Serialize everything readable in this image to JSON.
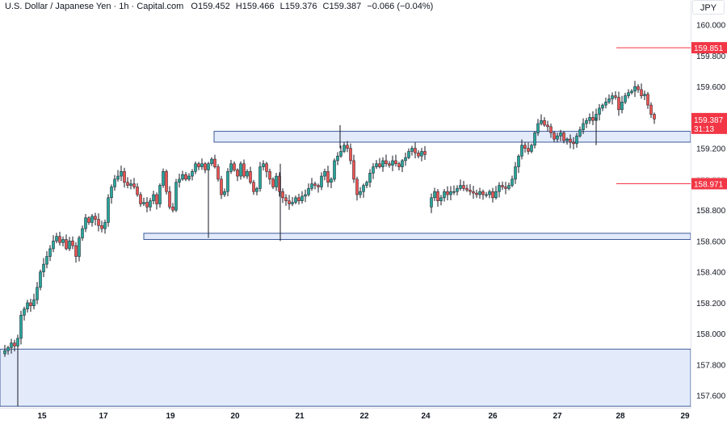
{
  "legend": {
    "symbol": "U.S. Dollar / Japanese Yen · 1h · Capital.com",
    "o_label": "O",
    "o_value": "159.452",
    "h_label": "H",
    "h_value": "159.466",
    "l_label": "L",
    "l_value": "159.376",
    "c_label": "C",
    "c_value": "159.387",
    "change": "−0.066 (−0.04%)"
  },
  "currency": "JPY",
  "colors": {
    "up": "#26a69a",
    "down": "#ef5350",
    "wick": "#131722",
    "level_line": "#f23645",
    "zone_fill": "#e3ebfb",
    "zone_border": "#3d5a98",
    "axis_text": "#131722"
  },
  "price_axis": {
    "ticks": [
      "160.000",
      "159.800",
      "159.600",
      "159.200",
      "158.800",
      "158.600",
      "158.400",
      "158.200",
      "158.000",
      "157.800",
      "157.600"
    ],
    "tick_values": [
      160.0,
      159.8,
      159.6,
      159.2,
      158.8,
      158.6,
      158.4,
      158.2,
      158.0,
      157.8,
      157.6
    ],
    "partial_tick": "159.000"
  },
  "time_axis": {
    "labels": [
      "15",
      "17",
      "19",
      "20",
      "21",
      "22",
      "24",
      "26",
      "27",
      "28",
      "29"
    ]
  },
  "price_labels": [
    {
      "text": "159.851",
      "value": 159.851
    },
    {
      "text": "158.971",
      "value": 158.971
    }
  ],
  "current_price": {
    "text": "159.387",
    "countdown": "31:13",
    "value": 159.387
  },
  "chart_data": {
    "type": "candlestick",
    "ylim": [
      157.52,
      160.16
    ],
    "horizontal_levels": [
      159.851,
      158.971
    ],
    "zones": [
      {
        "from": 159.24,
        "to": 159.31,
        "start_day": "19"
      },
      {
        "from": 158.61,
        "to": 158.65,
        "start_day": "18"
      },
      {
        "from": 157.53,
        "to": 157.9,
        "start_day": "14"
      }
    ],
    "close_path": [
      [
        0,
        157.87
      ],
      [
        4,
        157.89
      ],
      [
        8,
        157.91
      ],
      [
        12,
        157.94
      ],
      [
        16,
        157.92
      ],
      [
        20,
        157.97
      ],
      [
        24,
        158.12
      ],
      [
        28,
        158.16
      ],
      [
        32,
        158.2
      ],
      [
        36,
        158.18
      ],
      [
        40,
        158.22
      ],
      [
        44,
        158.3
      ],
      [
        48,
        158.4
      ],
      [
        52,
        158.45
      ],
      [
        56,
        158.5
      ],
      [
        60,
        158.55
      ],
      [
        64,
        158.6
      ],
      [
        68,
        158.63
      ],
      [
        72,
        158.59
      ],
      [
        76,
        158.61
      ],
      [
        80,
        158.55
      ],
      [
        84,
        158.6
      ],
      [
        88,
        158.57
      ],
      [
        92,
        158.5
      ],
      [
        96,
        158.62
      ],
      [
        100,
        158.68
      ],
      [
        104,
        158.75
      ],
      [
        108,
        158.72
      ],
      [
        112,
        158.76
      ],
      [
        116,
        158.74
      ],
      [
        120,
        158.7
      ],
      [
        124,
        158.68
      ],
      [
        128,
        158.72
      ],
      [
        132,
        158.88
      ],
      [
        136,
        158.95
      ],
      [
        140,
        159.0
      ],
      [
        144,
        159.02
      ],
      [
        148,
        159.05
      ],
      [
        152,
        158.98
      ],
      [
        156,
        158.96
      ],
      [
        160,
        158.97
      ],
      [
        164,
        158.95
      ],
      [
        168,
        158.9
      ],
      [
        172,
        158.84
      ],
      [
        176,
        158.85
      ],
      [
        180,
        158.82
      ],
      [
        184,
        158.86
      ],
      [
        188,
        158.9
      ],
      [
        192,
        158.84
      ],
      [
        196,
        158.96
      ],
      [
        200,
        159.05
      ],
      [
        204,
        158.92
      ],
      [
        208,
        158.82
      ],
      [
        212,
        158.8
      ],
      [
        216,
        158.98
      ],
      [
        220,
        159.0
      ],
      [
        224,
        159.03
      ],
      [
        228,
        159.0
      ],
      [
        232,
        159.02
      ],
      [
        236,
        159.05
      ],
      [
        240,
        159.1
      ],
      [
        244,
        159.08
      ],
      [
        248,
        159.1
      ],
      [
        252,
        159.06
      ],
      [
        256,
        159.1
      ],
      [
        260,
        159.13
      ],
      [
        264,
        159.08
      ],
      [
        268,
        159.0
      ],
      [
        272,
        158.9
      ],
      [
        276,
        158.92
      ],
      [
        280,
        159.05
      ],
      [
        284,
        159.1
      ],
      [
        288,
        159.06
      ],
      [
        292,
        159.02
      ],
      [
        296,
        159.1
      ],
      [
        300,
        159.02
      ],
      [
        304,
        159.05
      ],
      [
        308,
        158.98
      ],
      [
        312,
        158.92
      ],
      [
        316,
        158.94
      ],
      [
        320,
        159.08
      ],
      [
        324,
        159.1
      ],
      [
        328,
        159.05
      ],
      [
        332,
        159.0
      ],
      [
        336,
        158.95
      ],
      [
        340,
        159.02
      ],
      [
        344,
        158.92
      ],
      [
        348,
        158.88
      ],
      [
        352,
        158.86
      ],
      [
        356,
        158.84
      ],
      [
        360,
        158.85
      ],
      [
        364,
        158.88
      ],
      [
        368,
        158.86
      ],
      [
        372,
        158.89
      ],
      [
        376,
        158.9
      ],
      [
        380,
        158.94
      ],
      [
        384,
        158.97
      ],
      [
        388,
        158.96
      ],
      [
        392,
        158.95
      ],
      [
        396,
        159.02
      ],
      [
        400,
        159.05
      ],
      [
        404,
        158.98
      ],
      [
        408,
        159.0
      ],
      [
        412,
        159.12
      ],
      [
        416,
        159.15
      ],
      [
        420,
        159.18
      ],
      [
        424,
        159.22
      ],
      [
        428,
        159.2
      ],
      [
        432,
        159.12
      ],
      [
        436,
        159.0
      ],
      [
        440,
        158.9
      ],
      [
        444,
        158.92
      ],
      [
        448,
        158.96
      ],
      [
        452,
        158.98
      ],
      [
        456,
        159.04
      ],
      [
        460,
        159.08
      ],
      [
        464,
        159.1
      ],
      [
        468,
        159.08
      ],
      [
        472,
        159.12
      ],
      [
        476,
        159.1
      ],
      [
        480,
        159.09
      ],
      [
        484,
        159.12
      ],
      [
        488,
        159.1
      ],
      [
        492,
        159.08
      ],
      [
        496,
        159.12
      ],
      [
        500,
        159.14
      ],
      [
        504,
        159.18
      ],
      [
        508,
        159.2
      ],
      [
        512,
        159.17
      ],
      [
        516,
        159.15
      ],
      [
        520,
        159.18
      ],
      [
        524,
        159.16
      ]
    ],
    "close_path_2": [
      [
        528,
        158.82
      ],
      [
        532,
        158.88
      ],
      [
        536,
        158.92
      ],
      [
        540,
        158.86
      ],
      [
        544,
        158.88
      ],
      [
        548,
        158.92
      ],
      [
        552,
        158.9
      ],
      [
        556,
        158.92
      ],
      [
        560,
        158.92
      ],
      [
        564,
        158.94
      ],
      [
        568,
        158.96
      ],
      [
        572,
        158.94
      ],
      [
        576,
        158.93
      ],
      [
        580,
        158.92
      ],
      [
        584,
        158.91
      ],
      [
        588,
        158.9
      ],
      [
        592,
        158.92
      ],
      [
        596,
        158.9
      ],
      [
        600,
        158.9
      ],
      [
        604,
        158.92
      ],
      [
        608,
        158.88
      ],
      [
        612,
        158.92
      ],
      [
        616,
        158.96
      ],
      [
        620,
        158.95
      ],
      [
        624,
        158.94
      ],
      [
        628,
        158.96
      ],
      [
        632,
        159.0
      ],
      [
        636,
        159.08
      ],
      [
        640,
        159.15
      ],
      [
        644,
        159.22
      ],
      [
        648,
        159.2
      ],
      [
        652,
        159.18
      ],
      [
        656,
        159.22
      ],
      [
        660,
        159.3
      ],
      [
        664,
        159.36
      ],
      [
        668,
        159.38
      ],
      [
        672,
        159.35
      ],
      [
        676,
        159.34
      ],
      [
        680,
        159.3
      ],
      [
        684,
        159.26
      ],
      [
        688,
        159.28
      ],
      [
        692,
        159.3
      ],
      [
        696,
        159.25
      ],
      [
        700,
        159.26
      ],
      [
        704,
        159.24
      ],
      [
        708,
        159.23
      ],
      [
        712,
        159.28
      ],
      [
        716,
        159.32
      ],
      [
        720,
        159.36
      ],
      [
        724,
        159.38
      ],
      [
        728,
        159.4
      ],
      [
        732,
        159.38
      ],
      [
        736,
        159.42
      ],
      [
        740,
        159.46
      ],
      [
        744,
        159.48
      ],
      [
        748,
        159.5
      ],
      [
        752,
        159.52
      ],
      [
        756,
        159.54
      ],
      [
        760,
        159.53
      ],
      [
        764,
        159.45
      ],
      [
        768,
        159.5
      ],
      [
        772,
        159.54
      ],
      [
        776,
        159.56
      ],
      [
        780,
        159.57
      ],
      [
        784,
        159.6
      ],
      [
        788,
        159.58
      ],
      [
        792,
        159.54
      ],
      [
        796,
        159.55
      ],
      [
        800,
        159.48
      ],
      [
        804,
        159.42
      ],
      [
        808,
        159.39
      ]
    ]
  }
}
